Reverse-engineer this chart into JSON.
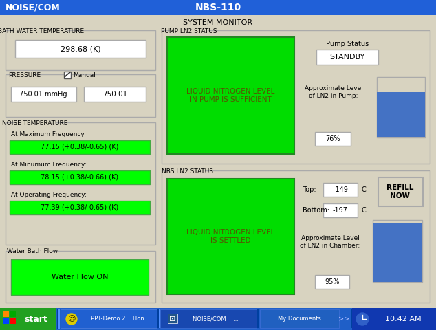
{
  "title_bar_text": "NBS-110",
  "title_bar_left": "NOISE/COM",
  "title_bar_color": "#2060d8",
  "title_bar_text_color": "#ffffff",
  "bg_color": "#d8d3c0",
  "system_monitor_label": "SYSTEM MONITOR",
  "bath_water_label": "BATH WATER TEMPERATURE",
  "bath_water_value": "298.68 (K)",
  "pressure_label": "PRESSURE",
  "pressure_manual": "Manual",
  "pressure_value1": "750.01 mmHg",
  "pressure_value2": "750.01",
  "noise_temp_label": "NOISE TEMPERATURE",
  "at_max_label": "At Maximum Frequency:",
  "at_max_value": "77.15 (+0.38/-0.65) (K)",
  "at_min_label": "At Minumum Frequency:",
  "at_min_value": "78.15 (+0.38/-0.66) (K)",
  "at_op_label": "At Operating Frequency:",
  "at_op_value": "77.39 (+0.38/-0.65) (K)",
  "water_bath_label": "Water Bath Flow",
  "water_bath_value": "Water Flow ON",
  "pump_ln2_label": "PUMP LN2 STATUS",
  "pump_status_label": "Pump Status",
  "pump_status_value": "STANDBY",
  "pump_level_label": "Approximate Level\nof LN2 in Pump:",
  "pump_level_value": "76%",
  "pump_ln2_main_text": "LIQUID NITROGEN LEVEL\nIN PUMP IS SUFFICIENT",
  "nbs_ln2_label": "NBS LN2 STATUS",
  "nbs_top_label": "Top:",
  "nbs_top_value": "-149",
  "nbs_bottom_label": "Bottom:",
  "nbs_bottom_value": "-197",
  "nbs_c_unit": "C",
  "nbs_level_label": "Approximate Level\nof LN2 in Chamber:",
  "nbs_level_value": "95%",
  "nbs_ln2_main_text": "LIQUID NITROGEN LEVEL\nIS SETTLED",
  "refill_now_text": "REFILL\nNOW",
  "green_color": "#00dd00",
  "bright_green": "#00ff00",
  "blue_indicator": "#4472c4",
  "blue_indicator_top": "#d8d3c0",
  "white_box": "#ffffff",
  "taskbar_color": "#1f5fc8",
  "taskbar_start_color": "#22a020",
  "time_text": "10:42 AM",
  "group_border": "#aaaaaa"
}
